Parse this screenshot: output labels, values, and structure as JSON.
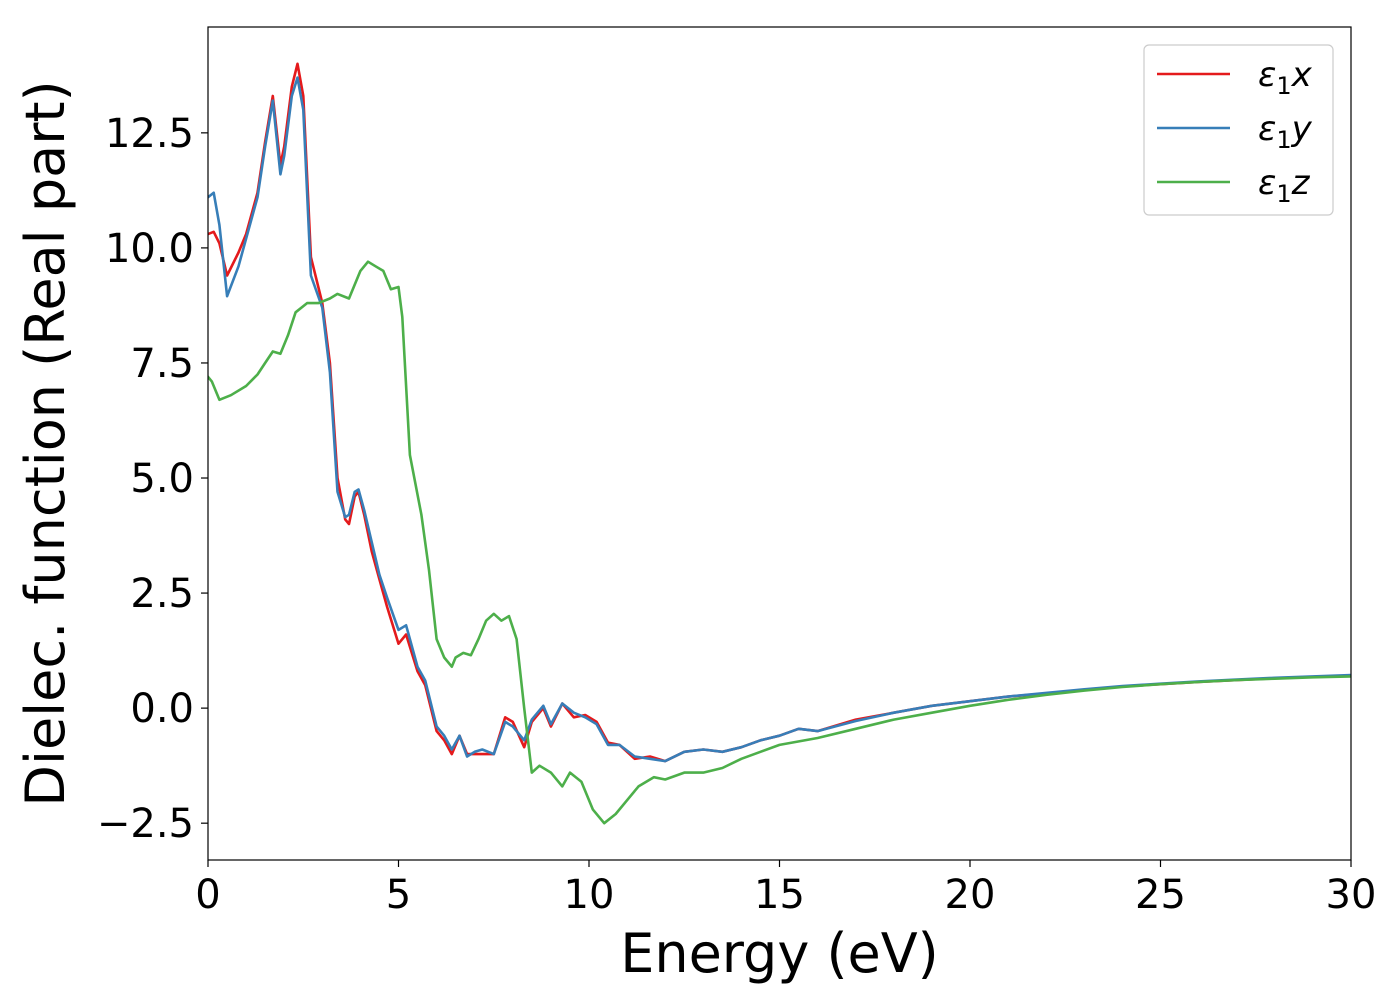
{
  "chart_data": {
    "type": "line",
    "title": "",
    "xlabel": "Energy (eV)",
    "ylabel": "Dielec. function (Real part)",
    "xlim": [
      0,
      30
    ],
    "ylim": [
      -3.3,
      14.8
    ],
    "xticks": [
      0,
      5,
      10,
      15,
      20,
      25,
      30
    ],
    "xtick_labels": [
      "0",
      "5",
      "10",
      "15",
      "20",
      "25",
      "30"
    ],
    "yticks": [
      -2.5,
      0.0,
      2.5,
      5.0,
      7.5,
      10.0,
      12.5
    ],
    "ytick_labels": [
      "−2.5",
      "0.0",
      "2.5",
      "5.0",
      "7.5",
      "10.0",
      "12.5"
    ],
    "grid": false,
    "legend_position": "top-right",
    "series": [
      {
        "name": "ε₁x",
        "legend_base": "ε",
        "legend_sub": "1",
        "legend_suffix": "x",
        "color": "#e41a1c",
        "x": [
          0,
          0.15,
          0.3,
          0.5,
          0.8,
          1.0,
          1.3,
          1.5,
          1.7,
          1.9,
          2.0,
          2.2,
          2.35,
          2.5,
          2.7,
          3.0,
          3.2,
          3.4,
          3.6,
          3.7,
          3.85,
          3.95,
          4.1,
          4.3,
          4.5,
          4.7,
          5.0,
          5.2,
          5.5,
          5.7,
          6.0,
          6.2,
          6.4,
          6.6,
          6.8,
          7.0,
          7.2,
          7.5,
          7.8,
          8.0,
          8.3,
          8.5,
          8.8,
          9.0,
          9.3,
          9.6,
          9.9,
          10.2,
          10.5,
          10.8,
          11.2,
          11.6,
          12.0,
          12.5,
          13.0,
          13.5,
          14.0,
          14.5,
          15.0,
          15.5,
          16.0,
          17.0,
          18.0,
          19.0,
          20.0,
          21.0,
          22.0,
          23.0,
          24.0,
          25.0,
          26.0,
          27.0,
          28.0,
          29.0,
          30.0
        ],
        "y": [
          10.3,
          10.35,
          10.1,
          9.4,
          9.9,
          10.3,
          11.2,
          12.3,
          13.3,
          11.8,
          12.2,
          13.5,
          14.0,
          13.3,
          9.8,
          8.8,
          7.5,
          5.0,
          4.1,
          4.0,
          4.6,
          4.7,
          4.2,
          3.4,
          2.8,
          2.2,
          1.4,
          1.6,
          0.8,
          0.5,
          -0.5,
          -0.7,
          -1.0,
          -0.6,
          -1.0,
          -1.0,
          -1.0,
          -1.0,
          -0.2,
          -0.3,
          -0.85,
          -0.3,
          0.0,
          -0.4,
          0.1,
          -0.2,
          -0.15,
          -0.3,
          -0.75,
          -0.8,
          -1.1,
          -1.05,
          -1.15,
          -0.95,
          -0.9,
          -0.95,
          -0.85,
          -0.7,
          -0.6,
          -0.45,
          -0.5,
          -0.25,
          -0.1,
          0.05,
          0.15,
          0.25,
          0.32,
          0.4,
          0.47,
          0.52,
          0.57,
          0.61,
          0.65,
          0.68,
          0.7
        ]
      },
      {
        "name": "ε₁y",
        "legend_base": "ε",
        "legend_sub": "1",
        "legend_suffix": "y",
        "color": "#377eb8",
        "x": [
          0,
          0.15,
          0.3,
          0.5,
          0.8,
          1.0,
          1.3,
          1.5,
          1.7,
          1.9,
          2.0,
          2.2,
          2.35,
          2.5,
          2.7,
          3.0,
          3.2,
          3.4,
          3.6,
          3.7,
          3.85,
          3.95,
          4.1,
          4.3,
          4.5,
          4.7,
          5.0,
          5.2,
          5.5,
          5.7,
          6.0,
          6.2,
          6.4,
          6.6,
          6.8,
          7.0,
          7.2,
          7.5,
          7.8,
          8.0,
          8.3,
          8.5,
          8.8,
          9.0,
          9.3,
          9.6,
          9.9,
          10.2,
          10.5,
          10.8,
          11.2,
          11.6,
          12.0,
          12.5,
          13.0,
          13.5,
          14.0,
          14.5,
          15.0,
          15.5,
          16.0,
          17.0,
          18.0,
          19.0,
          20.0,
          21.0,
          22.0,
          23.0,
          24.0,
          25.0,
          26.0,
          27.0,
          28.0,
          29.0,
          30.0
        ],
        "y": [
          11.1,
          11.2,
          10.5,
          8.95,
          9.6,
          10.2,
          11.1,
          12.2,
          13.2,
          11.6,
          12.0,
          13.3,
          13.7,
          13.0,
          9.4,
          8.7,
          7.3,
          4.7,
          4.15,
          4.2,
          4.7,
          4.75,
          4.3,
          3.6,
          2.9,
          2.4,
          1.7,
          1.8,
          0.9,
          0.6,
          -0.4,
          -0.6,
          -0.9,
          -0.6,
          -1.05,
          -0.95,
          -0.9,
          -1.0,
          -0.3,
          -0.4,
          -0.7,
          -0.25,
          0.05,
          -0.35,
          0.1,
          -0.1,
          -0.2,
          -0.35,
          -0.8,
          -0.8,
          -1.05,
          -1.1,
          -1.15,
          -0.95,
          -0.9,
          -0.95,
          -0.85,
          -0.7,
          -0.6,
          -0.45,
          -0.5,
          -0.28,
          -0.1,
          0.05,
          0.15,
          0.25,
          0.33,
          0.41,
          0.48,
          0.53,
          0.58,
          0.62,
          0.66,
          0.69,
          0.72
        ]
      },
      {
        "name": "ε₁z",
        "legend_base": "ε",
        "legend_sub": "1",
        "legend_suffix": "z",
        "color": "#4daf4a",
        "x": [
          0,
          0.1,
          0.3,
          0.6,
          1.0,
          1.3,
          1.5,
          1.7,
          1.9,
          2.1,
          2.3,
          2.6,
          2.9,
          3.2,
          3.4,
          3.7,
          4.0,
          4.2,
          4.4,
          4.6,
          4.8,
          5.0,
          5.1,
          5.3,
          5.6,
          5.8,
          6.0,
          6.2,
          6.4,
          6.5,
          6.7,
          6.9,
          7.1,
          7.3,
          7.5,
          7.7,
          7.9,
          8.1,
          8.3,
          8.5,
          8.7,
          9.0,
          9.3,
          9.5,
          9.8,
          10.1,
          10.4,
          10.7,
          11.0,
          11.3,
          11.7,
          12.0,
          12.5,
          13.0,
          13.5,
          14.0,
          14.5,
          15.0,
          16.0,
          17.0,
          18.0,
          19.0,
          20.0,
          21.0,
          22.0,
          23.0,
          24.0,
          25.0,
          26.0,
          27.0,
          28.0,
          29.0,
          30.0
        ],
        "y": [
          7.2,
          7.1,
          6.7,
          6.8,
          7.0,
          7.25,
          7.5,
          7.75,
          7.7,
          8.1,
          8.6,
          8.8,
          8.8,
          8.9,
          9.0,
          8.9,
          9.5,
          9.7,
          9.6,
          9.5,
          9.1,
          9.15,
          8.5,
          5.5,
          4.2,
          3.0,
          1.5,
          1.1,
          0.9,
          1.1,
          1.2,
          1.15,
          1.5,
          1.9,
          2.05,
          1.9,
          2.0,
          1.5,
          0.0,
          -1.4,
          -1.25,
          -1.4,
          -1.7,
          -1.4,
          -1.6,
          -2.2,
          -2.5,
          -2.3,
          -2.0,
          -1.7,
          -1.5,
          -1.55,
          -1.4,
          -1.4,
          -1.3,
          -1.1,
          -0.95,
          -0.8,
          -0.65,
          -0.45,
          -0.25,
          -0.1,
          0.05,
          0.18,
          0.29,
          0.38,
          0.46,
          0.52,
          0.57,
          0.61,
          0.64,
          0.67,
          0.69
        ]
      }
    ]
  }
}
